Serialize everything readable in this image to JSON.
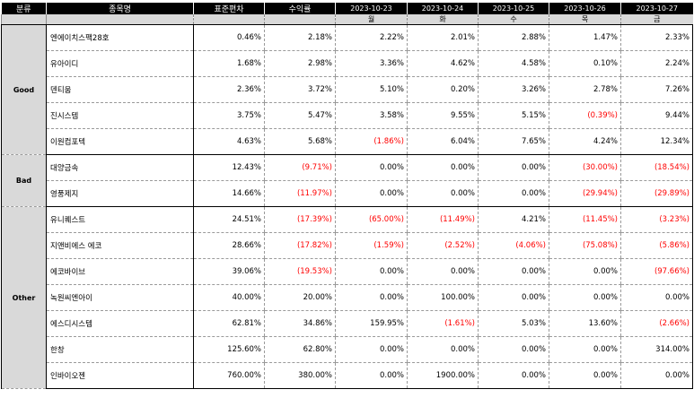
{
  "headers": {
    "category": "분류",
    "name": "종목명",
    "std": "표준편차",
    "return": "수익률",
    "dates": [
      "2023-10-23",
      "2023-10-24",
      "2023-10-25",
      "2023-10-26",
      "2023-10-27"
    ],
    "weekdays": [
      "월",
      "화",
      "수",
      "목",
      "금"
    ]
  },
  "groups": [
    {
      "name": "Good",
      "rows": [
        {
          "name": "엔에이치스팩28호",
          "std": "0.46%",
          "return": "2.18%",
          "daily": [
            "2.22%",
            "2.01%",
            "2.88%",
            "1.47%",
            "2.33%"
          ]
        },
        {
          "name": "유아이디",
          "std": "1.68%",
          "return": "2.98%",
          "daily": [
            "3.36%",
            "4.62%",
            "4.58%",
            "0.10%",
            "2.24%"
          ]
        },
        {
          "name": "덴티움",
          "std": "2.36%",
          "return": "3.72%",
          "daily": [
            "5.10%",
            "0.20%",
            "3.26%",
            "2.78%",
            "7.26%"
          ]
        },
        {
          "name": "진시스템",
          "std": "3.75%",
          "return": "5.47%",
          "daily": [
            "3.58%",
            "9.55%",
            "5.15%",
            "(0.39%)",
            "9.44%"
          ]
        },
        {
          "name": "이원컴포텍",
          "std": "4.63%",
          "return": "5.68%",
          "daily": [
            "(1.86%)",
            "6.04%",
            "7.65%",
            "4.24%",
            "12.34%"
          ]
        }
      ]
    },
    {
      "name": "Bad",
      "rows": [
        {
          "name": "대양금속",
          "std": "12.43%",
          "return": "(9.71%)",
          "daily": [
            "0.00%",
            "0.00%",
            "0.00%",
            "(30.00%)",
            "(18.54%)"
          ]
        },
        {
          "name": "영풍제지",
          "std": "14.66%",
          "return": "(11.97%)",
          "daily": [
            "0.00%",
            "0.00%",
            "0.00%",
            "(29.94%)",
            "(29.89%)"
          ]
        }
      ]
    },
    {
      "name": "Other",
      "rows": [
        {
          "name": "유니퀘스트",
          "std": "24.51%",
          "return": "(17.39%)",
          "daily": [
            "(65.00%)",
            "(11.49%)",
            "4.21%",
            "(11.45%)",
            "(3.23%)"
          ]
        },
        {
          "name": "지앤비에스 에코",
          "std": "28.66%",
          "return": "(17.82%)",
          "daily": [
            "(1.59%)",
            "(2.52%)",
            "(4.06%)",
            "(75.08%)",
            "(5.86%)"
          ]
        },
        {
          "name": "에코바이브",
          "std": "39.06%",
          "return": "(19.53%)",
          "daily": [
            "0.00%",
            "0.00%",
            "0.00%",
            "0.00%",
            "(97.66%)"
          ]
        },
        {
          "name": "녹원씨엔아이",
          "std": "40.00%",
          "return": "20.00%",
          "daily": [
            "0.00%",
            "100.00%",
            "0.00%",
            "0.00%",
            "0.00%"
          ]
        },
        {
          "name": "에스디시스템",
          "std": "62.81%",
          "return": "34.86%",
          "daily": [
            "159.95%",
            "(1.61%)",
            "5.03%",
            "13.60%",
            "(2.66%)"
          ]
        },
        {
          "name": "한창",
          "std": "125.60%",
          "return": "62.80%",
          "daily": [
            "0.00%",
            "0.00%",
            "0.00%",
            "0.00%",
            "314.00%"
          ]
        },
        {
          "name": "인바이오젠",
          "std": "760.00%",
          "return": "380.00%",
          "daily": [
            "0.00%",
            "1900.00%",
            "0.00%",
            "0.00%",
            "0.00%"
          ]
        }
      ]
    }
  ],
  "colors": {
    "negative": "#ff0000",
    "header_bg": "#000000",
    "subheader_bg": "#d9d9d9"
  }
}
